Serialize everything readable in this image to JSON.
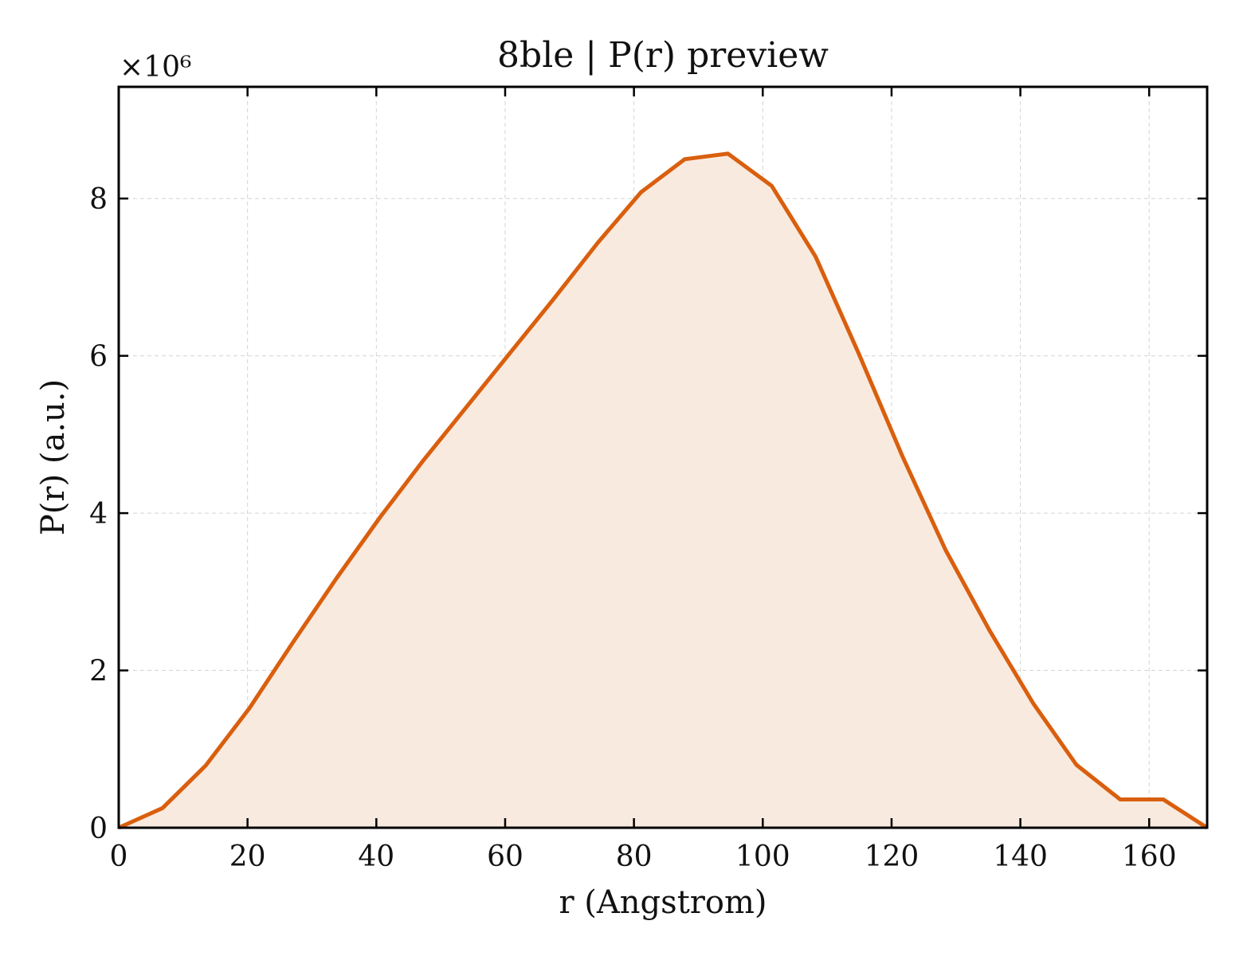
{
  "chart_data": {
    "type": "line",
    "title": "8ble | P(r) preview",
    "xlabel": "r (Angstrom)",
    "ylabel": "P(r) (a.u.)",
    "y_offset_label": "×10⁶",
    "xlim": [
      0,
      169
    ],
    "ylim": [
      0,
      9.42
    ],
    "y_scale_factor": 1000000,
    "xticks": [
      0,
      20,
      40,
      60,
      80,
      100,
      120,
      140,
      160
    ],
    "yticks": [
      0,
      2,
      4,
      6,
      8
    ],
    "grid": true,
    "fill_under": true,
    "line_color": "#d95f0e",
    "fill_color": "#f9eadf",
    "series": [
      {
        "x": [
          0,
          6.8,
          13.5,
          20.3,
          27.0,
          33.8,
          40.6,
          47.3,
          54.1,
          60.8,
          67.6,
          74.4,
          81.1,
          87.9,
          94.6,
          101.4,
          108.2,
          114.9,
          121.7,
          128.4,
          135.2,
          142.0,
          148.7,
          155.5,
          162.2,
          169.0
        ],
        "y": [
          0,
          0.25,
          0.79,
          1.52,
          2.35,
          3.17,
          3.95,
          4.67,
          5.36,
          6.04,
          6.73,
          7.44,
          8.08,
          8.5,
          8.57,
          8.16,
          7.26,
          6.03,
          4.72,
          3.53,
          2.51,
          1.58,
          0.8,
          0.36,
          0.36,
          0
        ]
      }
    ]
  }
}
